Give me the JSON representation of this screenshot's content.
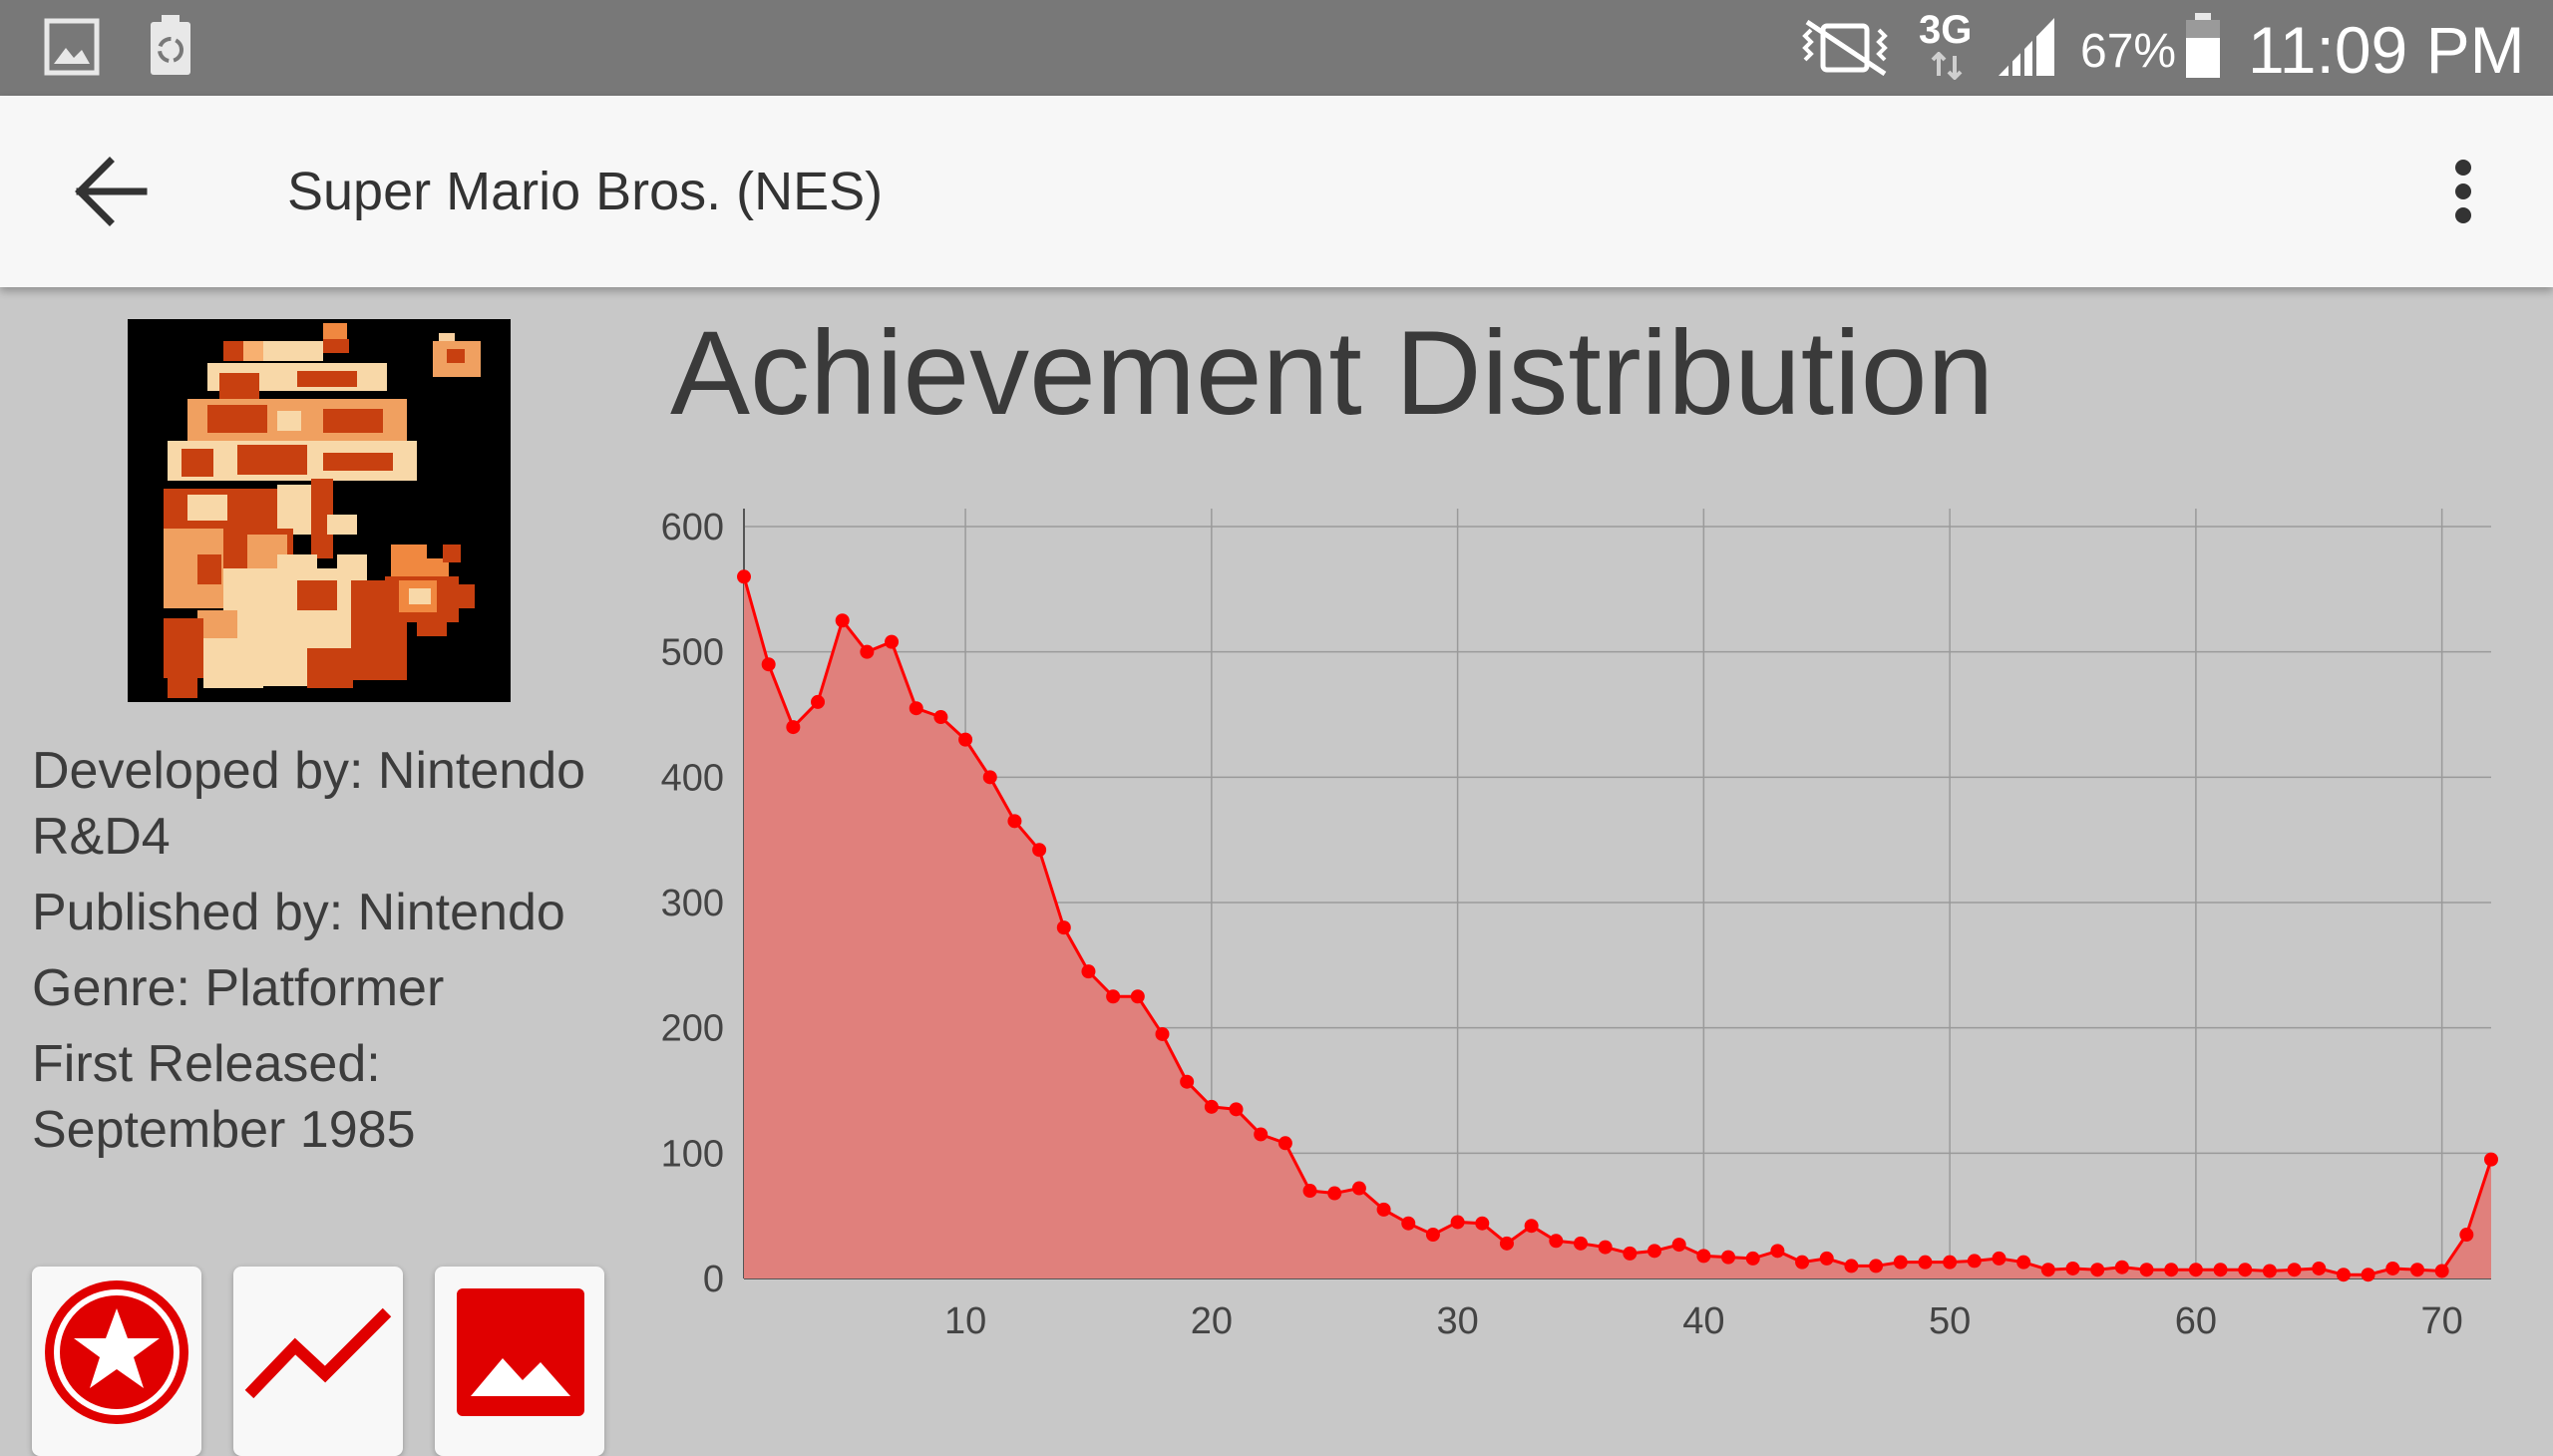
{
  "status_bar": {
    "icons": [
      "gallery-icon",
      "recycle-icon",
      "vibrate-mute-icon",
      "network-3g-icon",
      "signal-icon",
      "battery-icon"
    ],
    "network": "3G",
    "battery": "67%",
    "time": "11:09 PM"
  },
  "app_bar": {
    "title": "Super Mario Bros. (NES)"
  },
  "game": {
    "developer": "Developed by: Nintendo R&D4",
    "publisher": "Published by: Nintendo",
    "genre": "Genre: Platformer",
    "released": "First Released: September 1985"
  },
  "chart_data": {
    "type": "area",
    "title": "Achievement Distribution",
    "xlabel": "",
    "ylabel": "",
    "xlim": [
      1,
      72
    ],
    "ylim": [
      0,
      600
    ],
    "xticks": [
      10,
      20,
      30,
      40,
      50,
      60,
      70
    ],
    "yticks": [
      0,
      100,
      200,
      300,
      400,
      500,
      600
    ],
    "grid": true,
    "colors": {
      "line": "#ff0000",
      "fill": "#e0807c"
    },
    "x": [
      1,
      2,
      3,
      4,
      5,
      6,
      7,
      8,
      9,
      10,
      11,
      12,
      13,
      14,
      15,
      16,
      17,
      18,
      19,
      20,
      21,
      22,
      23,
      24,
      25,
      26,
      27,
      28,
      29,
      30,
      31,
      32,
      33,
      34,
      35,
      36,
      37,
      38,
      39,
      40,
      41,
      42,
      43,
      44,
      45,
      46,
      47,
      48,
      49,
      50,
      51,
      52,
      53,
      54,
      55,
      56,
      57,
      58,
      59,
      60,
      61,
      62,
      63,
      64,
      65,
      66,
      67,
      68,
      69,
      70,
      71,
      72
    ],
    "y": [
      560,
      490,
      440,
      460,
      525,
      500,
      508,
      455,
      448,
      430,
      400,
      365,
      342,
      280,
      245,
      225,
      225,
      195,
      157,
      137,
      135,
      115,
      108,
      70,
      68,
      72,
      55,
      44,
      35,
      45,
      44,
      28,
      42,
      30,
      28,
      25,
      20,
      22,
      27,
      18,
      17,
      16,
      22,
      13,
      16,
      10,
      10,
      13,
      13,
      13,
      14,
      16,
      13,
      7,
      8,
      7,
      9,
      7,
      7,
      7,
      7,
      7,
      6,
      7,
      8,
      3,
      3,
      8,
      7,
      6,
      35,
      95
    ]
  },
  "bottom_tabs": [
    "achievements-tab",
    "stats-tab",
    "gallery-tab"
  ]
}
